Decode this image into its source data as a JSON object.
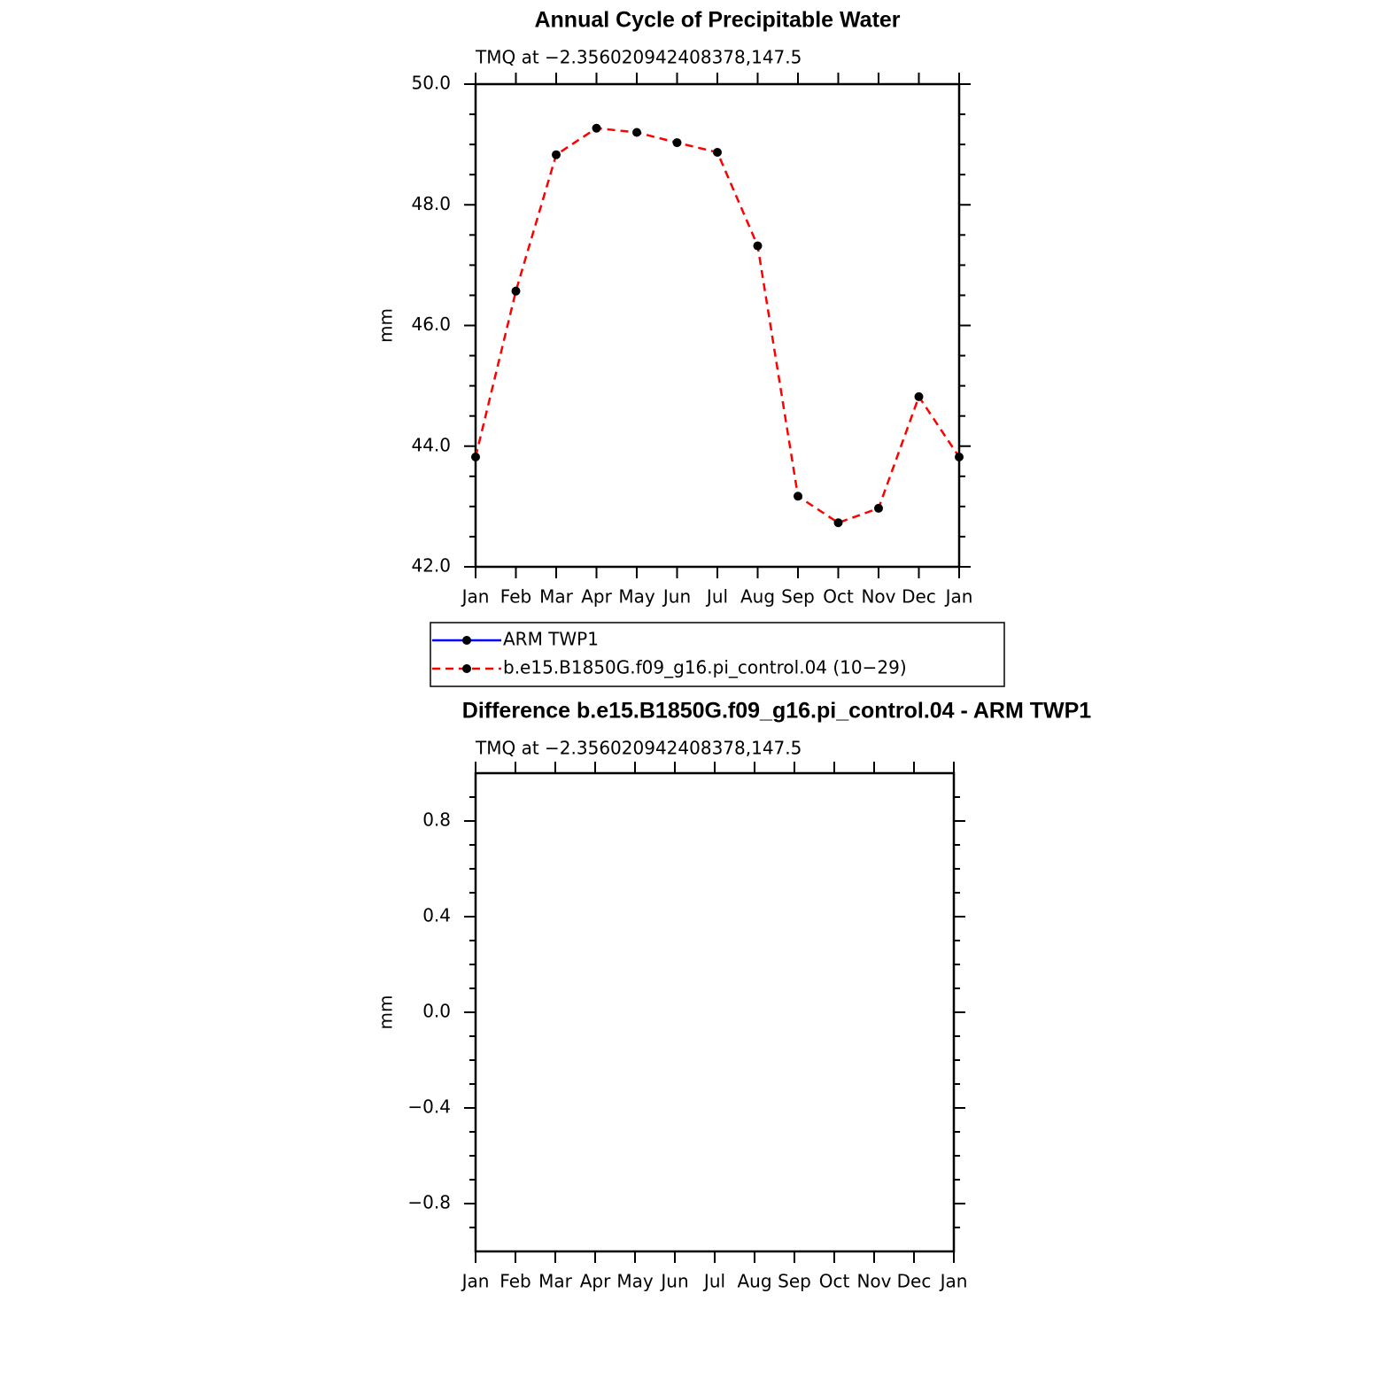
{
  "chart_data": [
    {
      "type": "line",
      "title": "Annual Cycle of Precipitable Water",
      "subtitle": "TMQ at −2.356020942408378,147.5",
      "ylabel": "mm",
      "categories": [
        "Jan",
        "Feb",
        "Mar",
        "Apr",
        "May",
        "Jun",
        "Jul",
        "Aug",
        "Sep",
        "Oct",
        "Nov",
        "Dec",
        "Jan"
      ],
      "series": [
        {
          "name": "ARM TWP1",
          "color": "#0000ff",
          "dash": false,
          "values": [
            null,
            null,
            null,
            null,
            null,
            null,
            null,
            null,
            null,
            null,
            null,
            null,
            null
          ]
        },
        {
          "name": "b.e15.B1850G.f09_g16.pi_control.04 (10−29)",
          "color": "#ff0000",
          "dash": true,
          "values": [
            43.82,
            46.57,
            48.83,
            49.27,
            49.2,
            49.03,
            48.87,
            47.32,
            43.17,
            42.73,
            42.97,
            44.82,
            43.82
          ]
        }
      ],
      "ylim": [
        42,
        50
      ],
      "yticks": [
        {
          "value": 42,
          "label": "42.0"
        },
        {
          "value": 44,
          "label": "44.0"
        },
        {
          "value": 46,
          "label": "46.0"
        },
        {
          "value": 48,
          "label": "48.0"
        },
        {
          "value": 50,
          "label": "50.0"
        }
      ],
      "yminorticks": [
        42.5,
        43,
        43.5,
        44.5,
        45,
        45.5,
        46.5,
        47,
        47.5,
        48.5,
        49,
        49.5
      ],
      "legend": "bottom"
    },
    {
      "type": "line",
      "title": "Difference b.e15.B1850G.f09_g16.pi_control.04 - ARM TWP1",
      "subtitle": "TMQ at −2.356020942408378,147.5",
      "ylabel": "mm",
      "categories": [
        "Jan",
        "Feb",
        "Mar",
        "Apr",
        "May",
        "Jun",
        "Jul",
        "Aug",
        "Sep",
        "Oct",
        "Nov",
        "Dec",
        "Jan"
      ],
      "series": [],
      "ylim": [
        -1,
        1
      ],
      "yticks": [
        {
          "value": -0.8,
          "label": "−0.8"
        },
        {
          "value": -0.4,
          "label": "−0.4"
        },
        {
          "value": 0,
          "label": "0.0"
        },
        {
          "value": 0.4,
          "label": "0.4"
        },
        {
          "value": 0.8,
          "label": "0.8"
        }
      ],
      "yminorticks": [
        -0.9,
        -0.7,
        -0.6,
        -0.5,
        -0.3,
        -0.2,
        -0.1,
        0.1,
        0.2,
        0.3,
        0.5,
        0.6,
        0.7,
        0.9
      ]
    }
  ]
}
